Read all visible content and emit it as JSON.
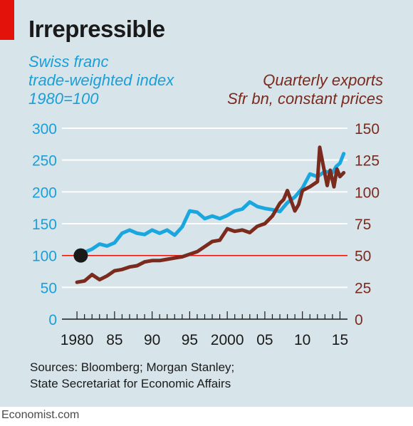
{
  "title": "Irrepressible",
  "left_axis_label": [
    "Swiss franc",
    "trade-weighted index",
    "1980=100"
  ],
  "right_axis_label": [
    "Quarterly exports",
    "Sfr bn, constant prices"
  ],
  "source_lines": [
    "Sources: Bloomberg; Morgan Stanley;",
    "State Secretariat for Economic Affairs"
  ],
  "footer": "Economist.com",
  "colors": {
    "franc": "#1aa7e0",
    "exports": "#7b2a1e",
    "baseline": "#e3120b",
    "background": "#d7e4ea",
    "left_axis_text": "#1a9fd8",
    "right_axis_text": "#7b2a1e"
  },
  "chart_data": {
    "type": "line",
    "x_tick_labels": [
      "1980",
      "85",
      "90",
      "95",
      "2000",
      "05",
      "10",
      "15"
    ],
    "x_tick_years": [
      1980,
      1985,
      1990,
      1995,
      2000,
      2005,
      2010,
      2015
    ],
    "xlim": [
      1978,
      2016
    ],
    "y_left": {
      "ticks": [
        0,
        50,
        100,
        150,
        200,
        250,
        300
      ],
      "ylim": [
        0,
        300
      ]
    },
    "y_right": {
      "ticks": [
        0,
        25,
        50,
        75,
        100,
        125,
        150
      ],
      "ylim": [
        0,
        150
      ]
    },
    "baseline": {
      "axis": "left",
      "value": 100,
      "from": 1978,
      "to": 1980.5
    },
    "marker": {
      "axis": "left",
      "x": 1980.5,
      "y": 100
    },
    "series": [
      {
        "axis": "left",
        "color_key": "franc",
        "x": [
          1980.5,
          1981,
          1982,
          1983,
          1984,
          1985,
          1986,
          1987,
          1988,
          1989,
          1990,
          1991,
          1992,
          1993,
          1994,
          1995,
          1996,
          1997,
          1998,
          1999,
          2000,
          2001,
          2002,
          2003,
          2004,
          2005,
          2006,
          2007,
          2008,
          2009,
          2010,
          2011,
          2012,
          2013,
          2014,
          2014.5,
          2015,
          2015.5
        ],
        "y": [
          100,
          105,
          110,
          118,
          115,
          120,
          135,
          140,
          135,
          133,
          140,
          135,
          140,
          132,
          145,
          170,
          168,
          158,
          162,
          158,
          163,
          170,
          173,
          184,
          177,
          174,
          172,
          169,
          183,
          192,
          206,
          228,
          224,
          232,
          230,
          240,
          245,
          260
        ]
      },
      {
        "axis": "right",
        "color_key": "exports",
        "x": [
          1980,
          1981,
          1982,
          1983,
          1984,
          1985,
          1986,
          1987,
          1988,
          1989,
          1990,
          1991,
          1992,
          1993,
          1994,
          1995,
          1996,
          1997,
          1998,
          1999,
          2000,
          2001,
          2002,
          2003,
          2004,
          2005,
          2006,
          2007,
          2007.5,
          2008,
          2009,
          2009.5,
          2010,
          2011,
          2012,
          2012.3,
          2012.8,
          2013.3,
          2013.7,
          2014.2,
          2014.6,
          2015,
          2015.5
        ],
        "y": [
          29,
          30,
          35,
          31,
          34,
          38,
          39,
          41,
          42,
          45,
          46,
          46,
          47,
          48,
          49,
          51,
          53,
          57,
          61,
          62,
          71,
          69,
          70,
          68,
          73,
          75,
          81,
          91,
          94,
          101,
          85,
          90,
          101,
          104,
          108,
          135,
          120,
          105,
          117,
          104,
          118,
          112,
          115
        ]
      }
    ],
    "grid": true
  }
}
